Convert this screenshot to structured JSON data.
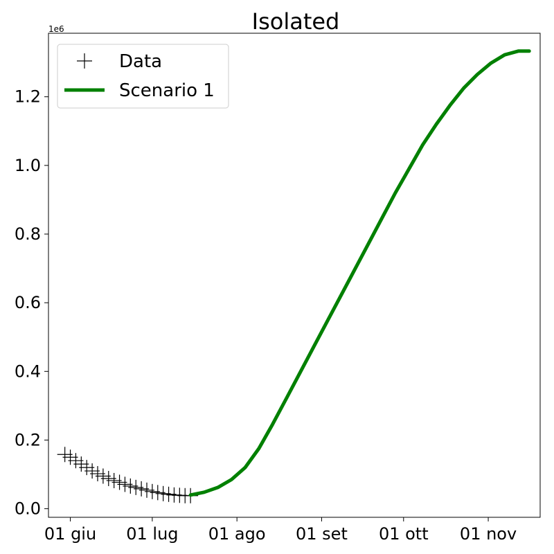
{
  "chart_data": {
    "type": "line",
    "title": "Isolated",
    "xlabel": "",
    "ylabel": "",
    "y_offset_label": "1e6",
    "ylim": [
      -0.025,
      1.385
    ],
    "xlim": [
      "2020-05-24",
      "2020-11-20"
    ],
    "x_ticks": [
      {
        "date": "2020-06-01",
        "label": "01 giu"
      },
      {
        "date": "2020-07-01",
        "label": "01 lug"
      },
      {
        "date": "2020-08-01",
        "label": "01 ago"
      },
      {
        "date": "2020-09-01",
        "label": "01 set"
      },
      {
        "date": "2020-10-01",
        "label": "01 ott"
      },
      {
        "date": "2020-11-01",
        "label": "01 nov"
      }
    ],
    "y_ticks": [
      {
        "value": 0.0,
        "label": "0.0"
      },
      {
        "value": 0.2,
        "label": "0.2"
      },
      {
        "value": 0.4,
        "label": "0.4"
      },
      {
        "value": 0.6,
        "label": "0.6"
      },
      {
        "value": 0.8,
        "label": "0.8"
      },
      {
        "value": 1.0,
        "label": "1.0"
      },
      {
        "value": 1.2,
        "label": "1.2"
      }
    ],
    "grid": false,
    "legend": {
      "position": "top-left"
    },
    "series": [
      {
        "name": "Data",
        "kind": "scatter",
        "marker": "plus",
        "color": "#000000",
        "x": [
          "2020-05-30",
          "2020-06-01",
          "2020-06-03",
          "2020-06-05",
          "2020-06-07",
          "2020-06-09",
          "2020-06-11",
          "2020-06-13",
          "2020-06-15",
          "2020-06-17",
          "2020-06-19",
          "2020-06-21",
          "2020-06-23",
          "2020-06-25",
          "2020-06-27",
          "2020-06-29",
          "2020-07-01",
          "2020-07-03",
          "2020-07-05",
          "2020-07-07",
          "2020-07-09",
          "2020-07-11",
          "2020-07-13",
          "2020-07-15"
        ],
        "y": [
          0.158,
          0.15,
          0.14,
          0.13,
          0.12,
          0.11,
          0.102,
          0.095,
          0.088,
          0.082,
          0.077,
          0.071,
          0.066,
          0.062,
          0.058,
          0.054,
          0.05,
          0.047,
          0.044,
          0.042,
          0.04,
          0.039,
          0.038,
          0.038
        ]
      },
      {
        "name": "Scenario 1",
        "kind": "line",
        "color": "#008000",
        "x": [
          "2020-07-15",
          "2020-07-20",
          "2020-07-25",
          "2020-07-30",
          "2020-08-04",
          "2020-08-09",
          "2020-08-14",
          "2020-08-19",
          "2020-08-24",
          "2020-08-29",
          "2020-09-03",
          "2020-09-08",
          "2020-09-13",
          "2020-09-18",
          "2020-09-23",
          "2020-09-28",
          "2020-10-03",
          "2020-10-08",
          "2020-10-13",
          "2020-10-18",
          "2020-10-23",
          "2020-10-28",
          "2020-11-02",
          "2020-11-07",
          "2020-11-12",
          "2020-11-16"
        ],
        "y": [
          0.04,
          0.048,
          0.062,
          0.085,
          0.12,
          0.175,
          0.245,
          0.32,
          0.395,
          0.47,
          0.545,
          0.62,
          0.695,
          0.77,
          0.845,
          0.92,
          0.99,
          1.06,
          1.12,
          1.175,
          1.225,
          1.265,
          1.298,
          1.322,
          1.333,
          1.333
        ]
      }
    ]
  }
}
